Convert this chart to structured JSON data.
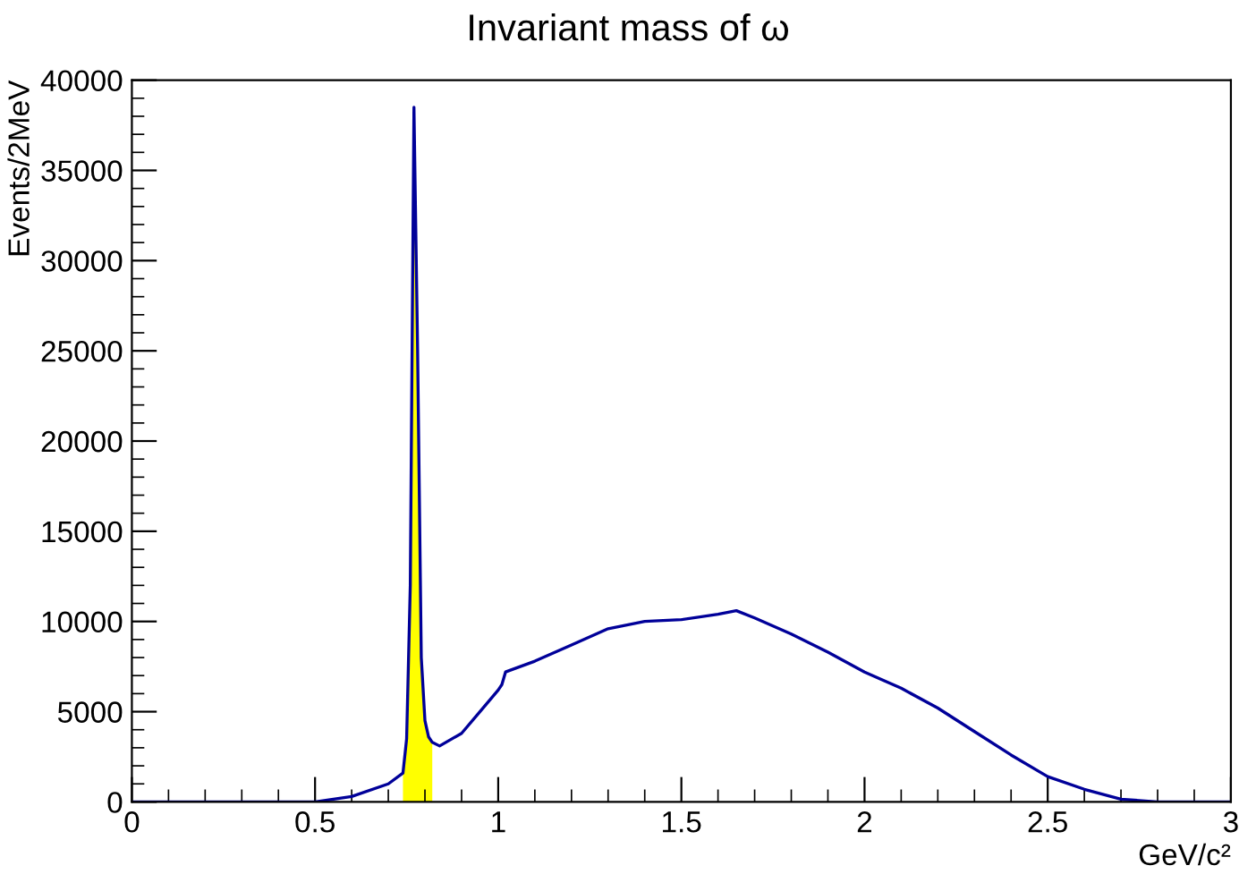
{
  "chart_data": {
    "type": "line",
    "title": "Invariant mass of ω",
    "xlabel": "GeV/c²",
    "ylabel": "Events/2MeV",
    "xlim": [
      0,
      3
    ],
    "xticks": [
      0,
      0.5,
      1,
      1.5,
      2,
      2.5,
      3
    ],
    "ylim": [
      0,
      40000
    ],
    "yticks": [
      0,
      5000,
      10000,
      15000,
      20000,
      25000,
      30000,
      35000,
      40000
    ],
    "grid": false,
    "series": [
      {
        "type": "area",
        "color": "#ffff00",
        "x": [
          0.74,
          0.75,
          0.76,
          0.77,
          0.78,
          0.79,
          0.8,
          0.81,
          0.82
        ],
        "values": [
          1600,
          3500,
          12000,
          38500,
          25000,
          8000,
          4500,
          3600,
          3300
        ]
      },
      {
        "color": "#000099",
        "x": [
          0,
          0.4,
          0.5,
          0.6,
          0.7,
          0.74,
          0.75,
          0.76,
          0.77,
          0.78,
          0.79,
          0.8,
          0.81,
          0.82,
          0.84,
          0.9,
          0.95,
          1.0,
          1.01,
          1.02,
          1.1,
          1.2,
          1.3,
          1.4,
          1.5,
          1.6,
          1.65,
          1.7,
          1.8,
          1.9,
          2.0,
          2.1,
          2.2,
          2.3,
          2.4,
          2.5,
          2.6,
          2.7,
          2.8,
          3.0
        ],
        "values": [
          0,
          0,
          0,
          300,
          1000,
          1600,
          3500,
          12000,
          38500,
          25000,
          8000,
          4500,
          3600,
          3300,
          3100,
          3800,
          5000,
          6200,
          6500,
          7200,
          7800,
          8700,
          9600,
          10000,
          10100,
          10400,
          10600,
          10200,
          9300,
          8300,
          7200,
          6300,
          5200,
          3900,
          2600,
          1400,
          700,
          150,
          0,
          0
        ]
      }
    ]
  }
}
